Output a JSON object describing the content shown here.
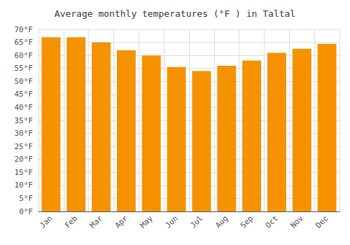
{
  "chart_data": {
    "type": "bar",
    "title": "Average monthly temperatures (°F ) in Taltal",
    "categories": [
      "Jan",
      "Feb",
      "Mar",
      "Apr",
      "May",
      "Jun",
      "Jul",
      "Aug",
      "Sep",
      "Oct",
      "Nov",
      "Dec"
    ],
    "values": [
      67.0,
      67.0,
      65.0,
      62.0,
      60.0,
      55.5,
      54.0,
      56.0,
      58.0,
      61.0,
      62.5,
      64.5
    ],
    "color": "#F59200",
    "ylim": [
      0,
      70
    ],
    "yticks": [
      {
        "value": 0,
        "label": "0°F"
      },
      {
        "value": 5,
        "label": "5°F"
      },
      {
        "value": 10,
        "label": "10°F"
      },
      {
        "value": 15,
        "label": "15°F"
      },
      {
        "value": 20,
        "label": "20°F"
      },
      {
        "value": 25,
        "label": "25°F"
      },
      {
        "value": 30,
        "label": "30°F"
      },
      {
        "value": 35,
        "label": "35°F"
      },
      {
        "value": 40,
        "label": "40°F"
      },
      {
        "value": 45,
        "label": "45°F"
      },
      {
        "value": 50,
        "label": "50°F"
      },
      {
        "value": 55,
        "label": "55°F"
      },
      {
        "value": 60,
        "label": "60°F"
      },
      {
        "value": 65,
        "label": "65°F"
      },
      {
        "value": 70,
        "label": "70°F"
      }
    ],
    "grid": true
  }
}
